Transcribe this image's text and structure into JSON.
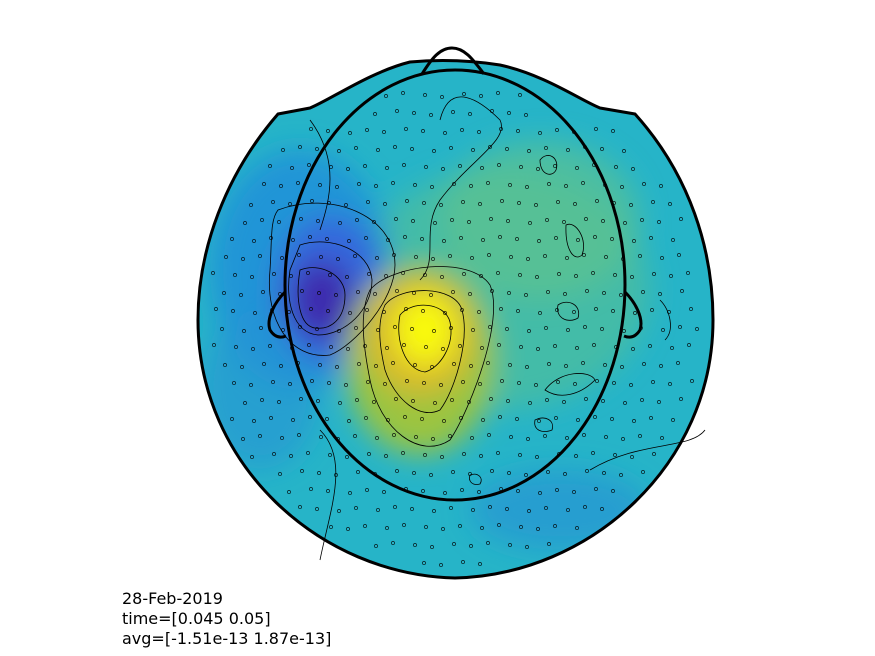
{
  "figure": {
    "type": "topoplot",
    "colormap": "parula",
    "colors": {
      "low": "#3e26a8",
      "mid_low": "#1f8fdb",
      "mid": "#26b4c8",
      "mid_high": "#7ec654",
      "high": "#f9fb0e",
      "outline": "#000000",
      "contour": "#000000",
      "sensor_marker": "#000000"
    },
    "contours": true,
    "sensors": "circle-markers"
  },
  "caption": {
    "date": "28-Feb-2019",
    "time": "time=[0.045 0.05]",
    "avg": "avg=[-1.51e-13 1.87e-13]"
  }
}
